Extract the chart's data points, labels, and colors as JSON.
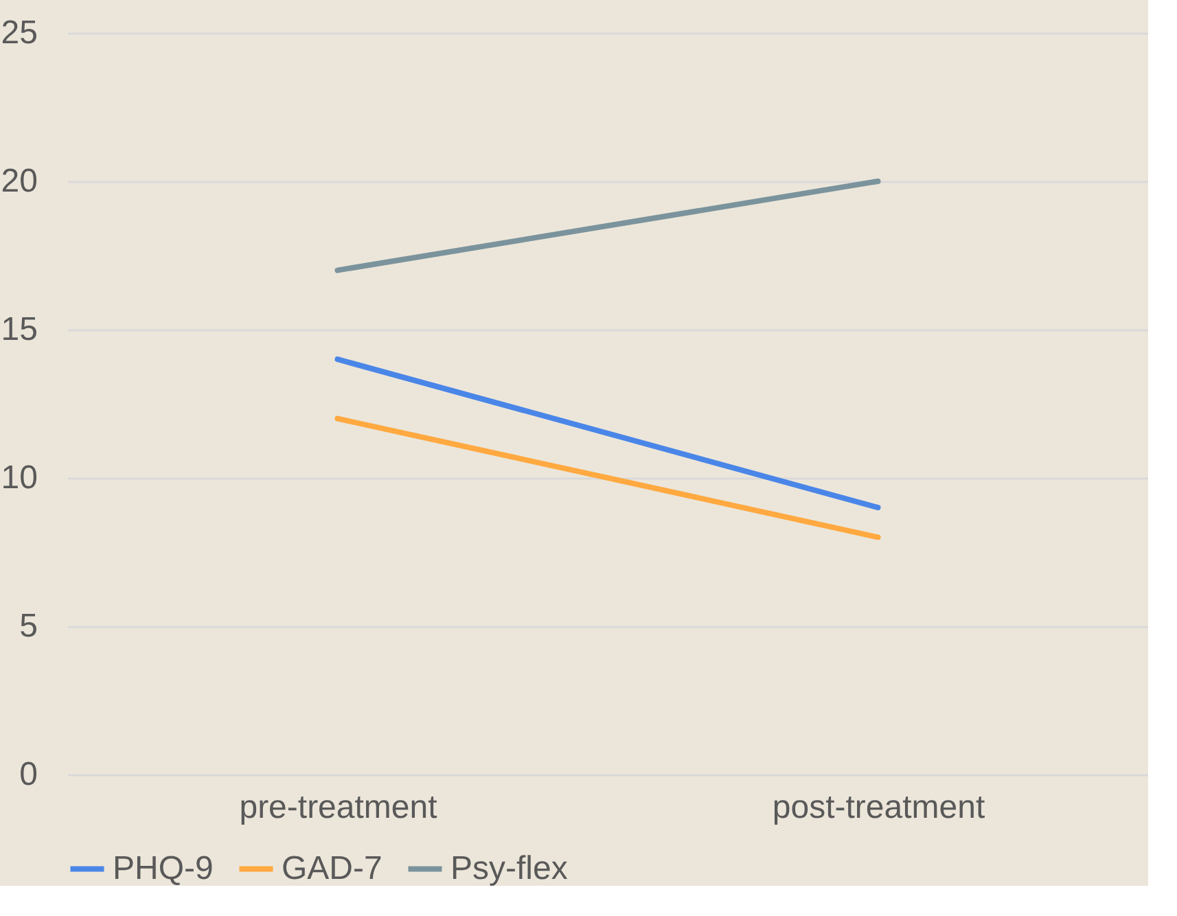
{
  "chart_data": {
    "type": "line",
    "categories": [
      "pre-treatment",
      "post-treatment"
    ],
    "series": [
      {
        "name": "PHQ-9",
        "color": "#4a86e8",
        "values": [
          14,
          9
        ]
      },
      {
        "name": "GAD-7",
        "color": "#ffa940",
        "values": [
          12,
          8
        ]
      },
      {
        "name": "Psy-flex",
        "color": "#7b939c",
        "values": [
          17,
          20
        ]
      }
    ],
    "ylim": [
      0,
      25
    ],
    "yticks": [
      0,
      5,
      10,
      15,
      20,
      25
    ],
    "grid": "y",
    "legend": "bottom",
    "marker": "none",
    "line_style": "solid"
  }
}
